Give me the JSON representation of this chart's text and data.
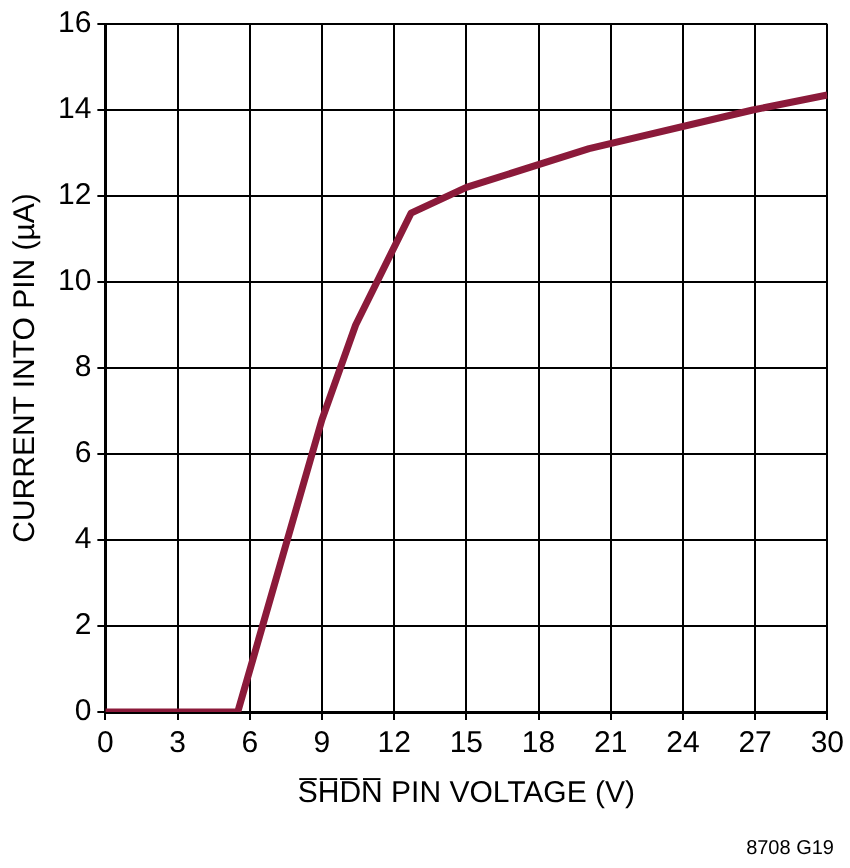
{
  "chart_data": {
    "type": "line",
    "xlabel": "S̅H̅D̅N̅ PIN VOLTAGE (V)",
    "ylabel": "CURRENT INTO PIN (µA)",
    "x": [
      0,
      5.5,
      9,
      10.4,
      12.7,
      15,
      20.1,
      26.9,
      30
    ],
    "series": [
      {
        "color": "#8b1a3a",
        "values": [
          0,
          0,
          6.8,
          9,
          11.6,
          12.2,
          13.1,
          14,
          14.35
        ]
      }
    ],
    "xlim": [
      0,
      30
    ],
    "xticks": [
      0,
      3,
      6,
      9,
      12,
      15,
      18,
      21,
      24,
      27,
      30
    ],
    "ylim": [
      0,
      16
    ],
    "yticks": [
      0,
      2,
      4,
      6,
      8,
      10,
      12,
      14,
      16
    ],
    "grid": true,
    "legend": false,
    "marker": "none",
    "line_style": "solid",
    "annotations": [
      "8708 G19"
    ]
  }
}
